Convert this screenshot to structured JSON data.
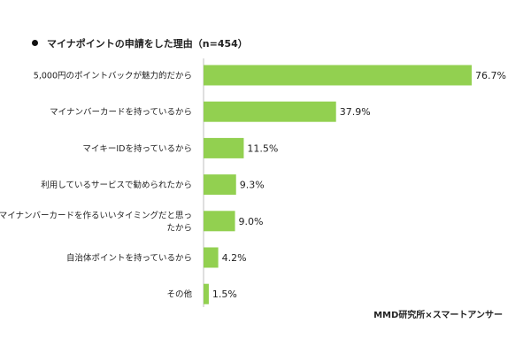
{
  "chart_data": {
    "type": "bar",
    "orientation": "horizontal",
    "title": "マイナポイントの申請をした理由（n=454）",
    "source": "MMD研究所×スマートアンサー",
    "bar_color": "#92d050",
    "categories": [
      "5,000円のポイントバックが魅力的だから",
      "マイナンバーカードを持っているから",
      "マイキーIDを持っているから",
      "利用しているサービスで勧められたから",
      "マイナンバーカードを作るいいタイミングだと思ったから",
      "自治体ポイントを持っているから",
      "その他"
    ],
    "category_lines": [
      [
        "5,000円のポイントバックが魅力的だから"
      ],
      [
        "マイナンバーカードを持っているから"
      ],
      [
        "マイキーIDを持っているから"
      ],
      [
        "利用しているサービスで勧められたから"
      ],
      [
        "マイナンバーカードを作るいいタイミングだと思っ",
        "たから"
      ],
      [
        "自治体ポイントを持っているから"
      ],
      [
        "その他"
      ]
    ],
    "values": [
      76.7,
      37.9,
      11.5,
      9.3,
      9.0,
      4.2,
      1.5
    ],
    "value_labels": [
      "76.7%",
      "37.9%",
      "11.5%",
      "9.3%",
      "9.0%",
      "4.2%",
      "1.5%"
    ],
    "xlim": [
      0,
      100
    ],
    "grid": false,
    "legend": "none"
  }
}
